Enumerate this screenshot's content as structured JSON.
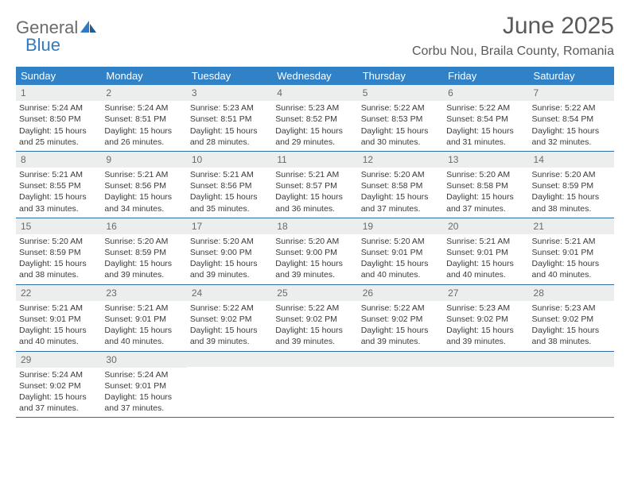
{
  "brand": {
    "word1": "General",
    "word2": "Blue",
    "logo_color": "#2f7bbf",
    "text_gray": "#6b6b6b"
  },
  "title": "June 2025",
  "location": "Corbu Nou, Braila County, Romania",
  "colors": {
    "header_bg": "#3081c6",
    "header_fg": "#ffffff",
    "daynum_bg": "#eceeee",
    "daynum_fg": "#6a6a6a",
    "row_border": "#2f6ca5",
    "body_text": "#3a3a3a",
    "title_text": "#595959"
  },
  "daysOfWeek": [
    "Sunday",
    "Monday",
    "Tuesday",
    "Wednesday",
    "Thursday",
    "Friday",
    "Saturday"
  ],
  "weeks": [
    [
      {
        "n": "1",
        "sr": "5:24 AM",
        "ss": "8:50 PM",
        "dl": "15 hours and 25 minutes."
      },
      {
        "n": "2",
        "sr": "5:24 AM",
        "ss": "8:51 PM",
        "dl": "15 hours and 26 minutes."
      },
      {
        "n": "3",
        "sr": "5:23 AM",
        "ss": "8:51 PM",
        "dl": "15 hours and 28 minutes."
      },
      {
        "n": "4",
        "sr": "5:23 AM",
        "ss": "8:52 PM",
        "dl": "15 hours and 29 minutes."
      },
      {
        "n": "5",
        "sr": "5:22 AM",
        "ss": "8:53 PM",
        "dl": "15 hours and 30 minutes."
      },
      {
        "n": "6",
        "sr": "5:22 AM",
        "ss": "8:54 PM",
        "dl": "15 hours and 31 minutes."
      },
      {
        "n": "7",
        "sr": "5:22 AM",
        "ss": "8:54 PM",
        "dl": "15 hours and 32 minutes."
      }
    ],
    [
      {
        "n": "8",
        "sr": "5:21 AM",
        "ss": "8:55 PM",
        "dl": "15 hours and 33 minutes."
      },
      {
        "n": "9",
        "sr": "5:21 AM",
        "ss": "8:56 PM",
        "dl": "15 hours and 34 minutes."
      },
      {
        "n": "10",
        "sr": "5:21 AM",
        "ss": "8:56 PM",
        "dl": "15 hours and 35 minutes."
      },
      {
        "n": "11",
        "sr": "5:21 AM",
        "ss": "8:57 PM",
        "dl": "15 hours and 36 minutes."
      },
      {
        "n": "12",
        "sr": "5:20 AM",
        "ss": "8:58 PM",
        "dl": "15 hours and 37 minutes."
      },
      {
        "n": "13",
        "sr": "5:20 AM",
        "ss": "8:58 PM",
        "dl": "15 hours and 37 minutes."
      },
      {
        "n": "14",
        "sr": "5:20 AM",
        "ss": "8:59 PM",
        "dl": "15 hours and 38 minutes."
      }
    ],
    [
      {
        "n": "15",
        "sr": "5:20 AM",
        "ss": "8:59 PM",
        "dl": "15 hours and 38 minutes."
      },
      {
        "n": "16",
        "sr": "5:20 AM",
        "ss": "8:59 PM",
        "dl": "15 hours and 39 minutes."
      },
      {
        "n": "17",
        "sr": "5:20 AM",
        "ss": "9:00 PM",
        "dl": "15 hours and 39 minutes."
      },
      {
        "n": "18",
        "sr": "5:20 AM",
        "ss": "9:00 PM",
        "dl": "15 hours and 39 minutes."
      },
      {
        "n": "19",
        "sr": "5:20 AM",
        "ss": "9:01 PM",
        "dl": "15 hours and 40 minutes."
      },
      {
        "n": "20",
        "sr": "5:21 AM",
        "ss": "9:01 PM",
        "dl": "15 hours and 40 minutes."
      },
      {
        "n": "21",
        "sr": "5:21 AM",
        "ss": "9:01 PM",
        "dl": "15 hours and 40 minutes."
      }
    ],
    [
      {
        "n": "22",
        "sr": "5:21 AM",
        "ss": "9:01 PM",
        "dl": "15 hours and 40 minutes."
      },
      {
        "n": "23",
        "sr": "5:21 AM",
        "ss": "9:01 PM",
        "dl": "15 hours and 40 minutes."
      },
      {
        "n": "24",
        "sr": "5:22 AM",
        "ss": "9:02 PM",
        "dl": "15 hours and 39 minutes."
      },
      {
        "n": "25",
        "sr": "5:22 AM",
        "ss": "9:02 PM",
        "dl": "15 hours and 39 minutes."
      },
      {
        "n": "26",
        "sr": "5:22 AM",
        "ss": "9:02 PM",
        "dl": "15 hours and 39 minutes."
      },
      {
        "n": "27",
        "sr": "5:23 AM",
        "ss": "9:02 PM",
        "dl": "15 hours and 39 minutes."
      },
      {
        "n": "28",
        "sr": "5:23 AM",
        "ss": "9:02 PM",
        "dl": "15 hours and 38 minutes."
      }
    ],
    [
      {
        "n": "29",
        "sr": "5:24 AM",
        "ss": "9:02 PM",
        "dl": "15 hours and 37 minutes."
      },
      {
        "n": "30",
        "sr": "5:24 AM",
        "ss": "9:01 PM",
        "dl": "15 hours and 37 minutes."
      },
      null,
      null,
      null,
      null,
      null
    ]
  ],
  "labels": {
    "sunrise": "Sunrise: ",
    "sunset": "Sunset: ",
    "daylight": "Daylight: "
  }
}
